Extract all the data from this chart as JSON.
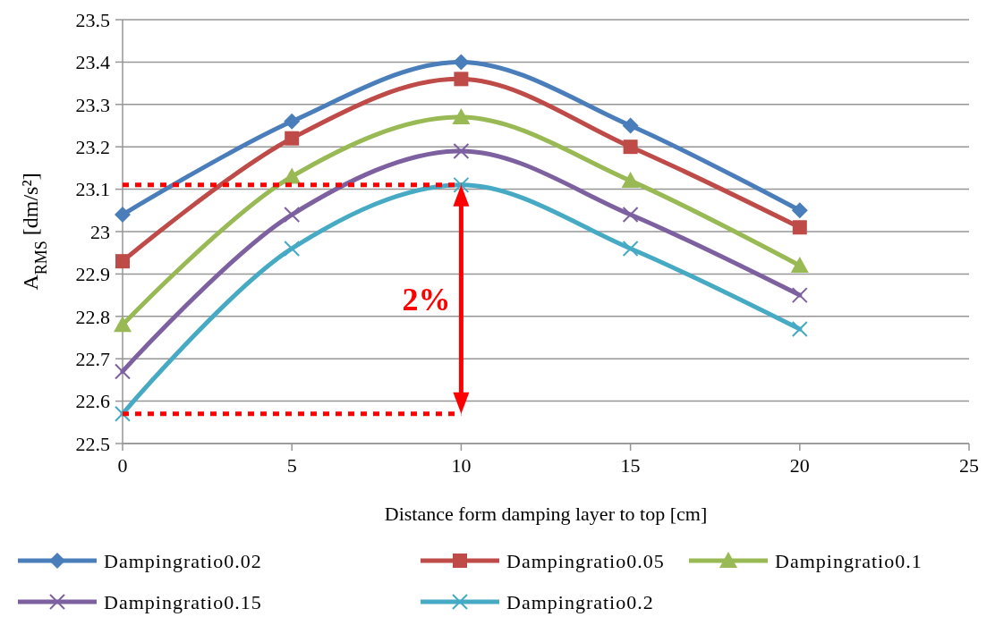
{
  "chart_data": {
    "type": "line",
    "xlabel": "Distance form damping layer to top [cm]",
    "ylabel": "A$_{RMS}$ [dm/s²]",
    "x": [
      0,
      5,
      10,
      15,
      20
    ],
    "series": [
      {
        "name": "Dampingratio0.02",
        "color": "#4a7ebb",
        "marker": "diamond",
        "values": [
          23.04,
          23.26,
          23.4,
          23.25,
          23.05
        ]
      },
      {
        "name": "Dampingratio0.05",
        "color": "#be4b48",
        "marker": "square",
        "values": [
          22.93,
          23.22,
          23.36,
          23.2,
          23.01
        ]
      },
      {
        "name": "Dampingratio0.1",
        "color": "#98b954",
        "marker": "triangle",
        "values": [
          22.78,
          23.13,
          23.27,
          23.12,
          22.92
        ]
      },
      {
        "name": "Dampingratio0.15",
        "color": "#7d60a0",
        "marker": "cross",
        "values": [
          22.67,
          23.04,
          23.19,
          23.04,
          22.85
        ]
      },
      {
        "name": "Dampingratio0.2",
        "color": "#46aac5",
        "marker": "cross",
        "values": [
          22.57,
          22.96,
          23.11,
          22.96,
          22.77
        ]
      }
    ],
    "annotations": [
      "2%"
    ],
    "xlim": [
      0,
      25
    ],
    "xticks": [
      0,
      5,
      10,
      15,
      20,
      25
    ],
    "ylim": [
      22.5,
      23.5
    ],
    "yticks": [
      22.5,
      22.6,
      22.7,
      22.8,
      22.9,
      23,
      23.1,
      23.2,
      23.3,
      23.4,
      23.5
    ],
    "grid": "y",
    "legend": "bottom"
  }
}
